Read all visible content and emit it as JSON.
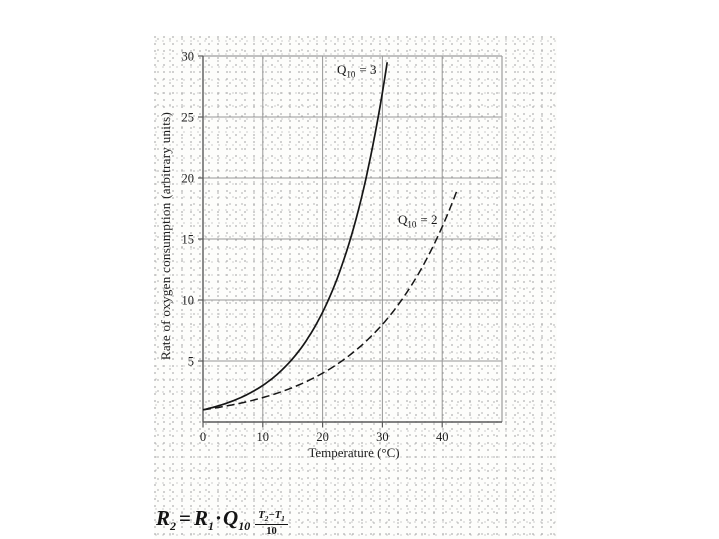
{
  "figure": {
    "annotations": {
      "q3": {
        "base": "Q",
        "sub": "10",
        "rest": "= 3"
      },
      "q2": {
        "base": "Q",
        "sub": "10",
        "rest": "= 2"
      }
    },
    "formula": {
      "r2_base": "R",
      "r2_sub": "2",
      "eq": "=",
      "r1_base": "R",
      "r1_sub": "1",
      "dot": "·",
      "q_base": "Q",
      "q_sub": "10",
      "num_t2_base": "T",
      "num_t2_sub": "2",
      "num_minus": "−",
      "num_t1_base": "T",
      "num_t1_sub": "1",
      "den": "10"
    }
  },
  "colors": {
    "curve": "#161616",
    "grid": "#979797",
    "border": "#9d9d9d",
    "axis": "#5a5a5a",
    "text": "#1c1c1c",
    "scan_background": "#fdfdfb"
  },
  "chart_data": {
    "type": "line",
    "title": "",
    "xlabel": "Temperature (°C)",
    "ylabel": "Rate of oxygen consumption (arbitrary units)",
    "xlim": [
      0,
      50
    ],
    "ylim": [
      0,
      30
    ],
    "x_ticks": [
      0,
      10,
      20,
      30,
      40
    ],
    "x_grid": [
      10,
      20,
      30,
      40
    ],
    "y_ticks": [
      5,
      10,
      15,
      20,
      25,
      30
    ],
    "y_grid": [
      5,
      10,
      15,
      20,
      25
    ],
    "grid": true,
    "legend_position": "inline-annotations",
    "series": [
      {
        "name": "Q10 = 3",
        "style": "solid",
        "model": "R = R1 * Q10^(T/10), R1 = 1",
        "q10": 3,
        "r_at_0": 1,
        "t_range": [
          0,
          30.8
        ],
        "sample_t": [
          0,
          5,
          10,
          15,
          20,
          25,
          30
        ],
        "sample_r": [
          1,
          1.73,
          3,
          5.2,
          9,
          15.6,
          27
        ]
      },
      {
        "name": "Q10 = 2",
        "style": "dashed",
        "model": "R = R1 * Q10^(T/10), R1 = 1",
        "q10": 2,
        "r_at_0": 1,
        "t_range": [
          0,
          42.6
        ],
        "sample_t": [
          0,
          5,
          10,
          15,
          20,
          25,
          30,
          35,
          40
        ],
        "sample_r": [
          1,
          1.41,
          2,
          2.83,
          4,
          5.66,
          8,
          11.31,
          16
        ]
      }
    ]
  }
}
